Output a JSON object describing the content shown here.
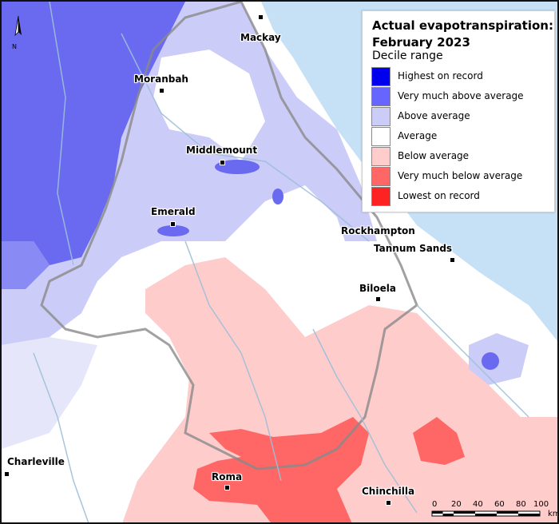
{
  "title_line1": "Actual evapotranspiration:",
  "title_line2": "February 2023",
  "legend_subtitle": "Decile range",
  "legend": [
    {
      "label": "Highest on record",
      "color": "#0000ee"
    },
    {
      "label": "Very much above average",
      "color": "#6666ff"
    },
    {
      "label": "Above average",
      "color": "#ccccf8"
    },
    {
      "label": "Average",
      "color": "#ffffff"
    },
    {
      "label": "Below average",
      "color": "#ffcccc"
    },
    {
      "label": "Very much below average",
      "color": "#ff6666"
    },
    {
      "label": "Lowest on record",
      "color": "#ff2222"
    }
  ],
  "towns": {
    "mackay": "Mackay",
    "moranbah": "Moranbah",
    "middlemount": "Middlemount",
    "emerald": "Emerald",
    "rockhampton": "Rockhampton",
    "tannum_sands": "Tannum Sands",
    "biloela": "Biloela",
    "charleville": "Charleville",
    "roma": "Roma",
    "chinchilla": "Chinchilla"
  },
  "north_arrow": "N",
  "scale_bar": {
    "ticks": [
      "0",
      "20",
      "40",
      "60",
      "80",
      "100"
    ],
    "unit": "km"
  },
  "colors": {
    "sea": "#c6e0f5",
    "river": "#9dbfd8"
  }
}
